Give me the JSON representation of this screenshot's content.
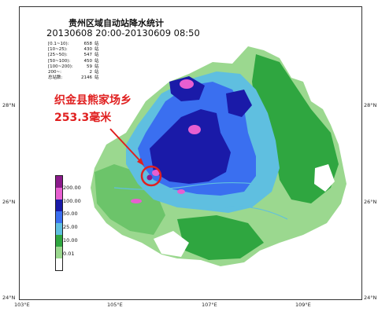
{
  "map": {
    "title": "贵州区域自动站降水统计",
    "subtitle": "20130608 20:00-20130609 08:50",
    "stats": [
      {
        "range": "[0.1~10):",
        "count": "658",
        "unit": "站"
      },
      {
        "range": "[10~25):",
        "count": "430",
        "unit": "站"
      },
      {
        "range": "[25~50):",
        "count": "547",
        "unit": "站"
      },
      {
        "range": "[50~100):",
        "count": "450",
        "unit": "站"
      },
      {
        "range": "[100~200):",
        "count": "59",
        "unit": "站"
      },
      {
        "range": "200~:",
        "count": "2",
        "unit": "站"
      },
      {
        "range": "总站数:",
        "count": "2146",
        "unit": "站"
      }
    ],
    "lat_ticks": {
      "left": [
        "28°N",
        "26°N",
        "24°N"
      ],
      "right": [
        "28°N",
        "26°N",
        "24°N"
      ]
    },
    "lon_ticks": [
      "103°E",
      "105°E",
      "107°E",
      "109°E"
    ],
    "legend": {
      "labels": [
        "200.00",
        "100.00",
        "50.00",
        "25.00",
        "10.00",
        "0.01"
      ],
      "colors": [
        "#8b1a8b",
        "#e75fd0",
        "#1a1aa8",
        "#3a6ff0",
        "#5fbfe0",
        "#2fa640",
        "#9bd88f",
        "#ffffff"
      ]
    },
    "annotation": {
      "place": "织金县熊家场乡",
      "amount": "253.3毫米",
      "color": "#e02020"
    }
  }
}
